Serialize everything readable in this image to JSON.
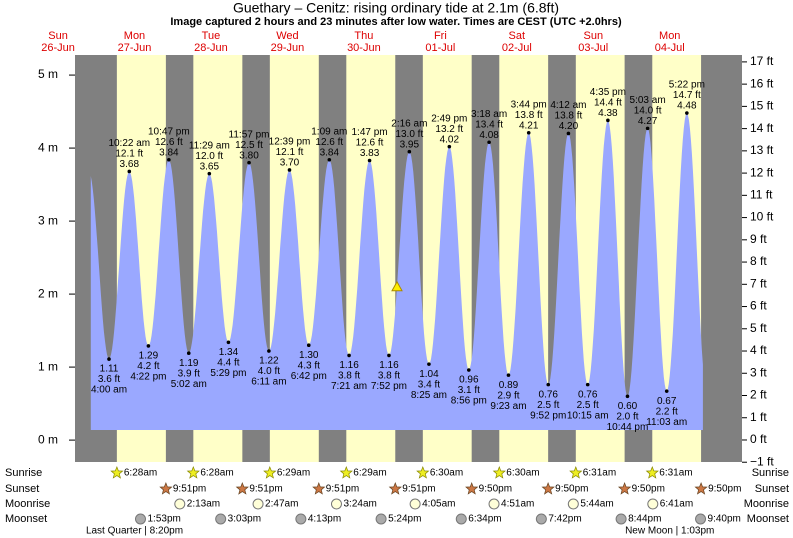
{
  "header": {
    "title": "Guethary – Cenitz: rising  ordinary tide at 2.1m (6.8ft)",
    "subtitle": "Image captured 2 hours and 23 minutes after low water. Times are CEST (UTC +2.0hrs)"
  },
  "chart_data": {
    "type": "tide",
    "ylim": [
      -0.3,
      5.275
    ],
    "yticks": [
      {
        "value": 0,
        "label": "0 m"
      },
      {
        "value": 1,
        "label": "1 m"
      },
      {
        "value": 2,
        "label": "2 m"
      },
      {
        "value": 3,
        "label": "3 m"
      },
      {
        "value": 4,
        "label": "4 m"
      },
      {
        "value": 5,
        "label": "5 m"
      }
    ],
    "y2lim": [
      -0.99,
      17.31
    ],
    "y2ticks": [
      {
        "value": -1,
        "label": "−1 ft"
      },
      {
        "value": 0,
        "label": "0 ft"
      },
      {
        "value": 1,
        "label": "1 ft"
      },
      {
        "value": 2,
        "label": "2 ft"
      },
      {
        "value": 3,
        "label": "3 ft"
      },
      {
        "value": 4,
        "label": "4 ft"
      },
      {
        "value": 5,
        "label": "5 ft"
      },
      {
        "value": 6,
        "label": "6 ft"
      },
      {
        "value": 7,
        "label": "7 ft"
      },
      {
        "value": 8,
        "label": "8 ft"
      },
      {
        "value": 9,
        "label": "9 ft"
      },
      {
        "value": 10,
        "label": "10 ft"
      },
      {
        "value": 11,
        "label": "11 ft"
      },
      {
        "value": 12,
        "label": "12 ft"
      },
      {
        "value": 13,
        "label": "13 ft"
      },
      {
        "value": 14,
        "label": "14 ft"
      },
      {
        "value": 15,
        "label": "15 ft"
      },
      {
        "value": 16,
        "label": "16 ft"
      },
      {
        "value": 17,
        "label": "17 ft"
      }
    ],
    "current_height_m": 2.1,
    "row_labels": {
      "sunrise": "Sunrise",
      "sunset": "Sunset",
      "moonrise": "Moonrise",
      "moonset": "Moonset"
    },
    "days": [
      {
        "weekday": "Sun",
        "date": "26-Jun"
      },
      {
        "weekday": "Mon",
        "date": "27-Jun",
        "sunrise": "6:28am",
        "sunset": "9:51pm",
        "moonset": "1:53pm",
        "moon_phase": "Last Quarter | 8:20pm",
        "tides": {
          "times": [
            "4:00 am",
            "10:22 am",
            "4:22 pm",
            "10:47 pm"
          ],
          "values": [
            1.11,
            3.68,
            1.29,
            3.84
          ],
          "value_labels": [
            "1.11",
            "3.68",
            "1.29",
            "3.84"
          ],
          "ft_labels": [
            "3.6 ft",
            "12.1 ft",
            "4.2 ft",
            "12.6 ft"
          ]
        }
      },
      {
        "weekday": "Tue",
        "date": "28-Jun",
        "sunrise": "6:28am",
        "sunset": "9:51pm",
        "moonrise": "2:13am",
        "moonset": "3:03pm",
        "tides": {
          "times": [
            "5:02 am",
            "11:29 am",
            "5:29 pm",
            "11:57 pm"
          ],
          "values": [
            1.19,
            3.65,
            1.34,
            3.8
          ],
          "value_labels": [
            "1.19",
            "3.65",
            "1.34",
            "3.80"
          ],
          "ft_labels": [
            "3.9 ft",
            "12.0 ft",
            "4.4 ft",
            "12.5 ft"
          ]
        }
      },
      {
        "weekday": "Wed",
        "date": "29-Jun",
        "sunrise": "6:29am",
        "sunset": "9:51pm",
        "moonrise": "2:47am",
        "moonset": "4:13pm",
        "tides": {
          "times": [
            "6:11 am",
            "12:39 pm",
            "6:42 pm"
          ],
          "values": [
            1.22,
            3.7,
            1.3
          ],
          "value_labels": [
            "1.22",
            "3.70",
            "1.30"
          ],
          "ft_labels": [
            "4.0 ft",
            "12.1 ft",
            "4.3 ft"
          ]
        }
      },
      {
        "weekday": "Thu",
        "date": "30-Jun",
        "sunrise": "6:29am",
        "sunset": "9:51pm",
        "moonrise": "3:24am",
        "moonset": "5:24pm",
        "tides": {
          "times": [
            "1:09 am",
            "7:21 am",
            "1:47 pm",
            "7:52 pm"
          ],
          "values": [
            3.84,
            1.16,
            3.83,
            1.16
          ],
          "value_labels": [
            "3.84",
            "1.16",
            "3.83",
            "1.16"
          ],
          "ft_labels": [
            "12.6 ft",
            "3.8 ft",
            "12.6 ft",
            "3.8 ft"
          ]
        }
      },
      {
        "weekday": "Fri",
        "date": "01-Jul",
        "sunrise": "6:30am",
        "sunset": "9:50pm",
        "moonrise": "4:05am",
        "moonset": "6:34pm",
        "tides": {
          "times": [
            "2:16 am",
            "8:25 am",
            "2:49 pm",
            "8:56 pm"
          ],
          "values": [
            3.95,
            1.04,
            4.02,
            0.96
          ],
          "value_labels": [
            "3.95",
            "1.04",
            "4.02",
            "0.96"
          ],
          "ft_labels": [
            "13.0 ft",
            "3.4 ft",
            "13.2 ft",
            "3.1 ft"
          ]
        }
      },
      {
        "weekday": "Sat",
        "date": "02-Jul",
        "sunrise": "6:30am",
        "sunset": "9:50pm",
        "moonrise": "4:51am",
        "moonset": "7:42pm",
        "tides": {
          "times": [
            "3:18 am",
            "9:23 am",
            "3:44 pm",
            "9:52 pm"
          ],
          "values": [
            4.08,
            0.89,
            4.21,
            0.76
          ],
          "value_labels": [
            "4.08",
            "0.89",
            "4.21",
            "0.76"
          ],
          "ft_labels": [
            "13.4 ft",
            "2.9 ft",
            "13.8 ft",
            "2.5 ft"
          ]
        }
      },
      {
        "weekday": "Sun",
        "date": "03-Jul",
        "sunrise": "6:31am",
        "sunset": "9:50pm",
        "moonrise": "5:44am",
        "moonset": "8:44pm",
        "tides": {
          "times": [
            "4:12 am",
            "10:15 am",
            "4:35 pm",
            "10:44 pm"
          ],
          "values": [
            4.2,
            0.76,
            4.38,
            0.6
          ],
          "value_labels": [
            "4.20",
            "0.76",
            "4.38",
            "0.60"
          ],
          "ft_labels": [
            "13.8 ft",
            "2.5 ft",
            "14.4 ft",
            "2.0 ft"
          ]
        }
      },
      {
        "weekday": "Mon",
        "date": "04-Jul",
        "sunrise": "6:31am",
        "sunset": "9:50pm",
        "moonrise": "6:41am",
        "moonset": "9:40pm",
        "moon_phase": "New Moon | 1:03pm",
        "tides": {
          "times": [
            "5:03 am",
            "11:03 am",
            "5:22 pm"
          ],
          "values": [
            4.27,
            0.67,
            4.48
          ],
          "value_labels": [
            "4.27",
            "0.67",
            "4.48"
          ],
          "ft_labels": [
            "14.0 ft",
            "2.2 ft",
            "14.7 ft"
          ]
        }
      }
    ]
  }
}
